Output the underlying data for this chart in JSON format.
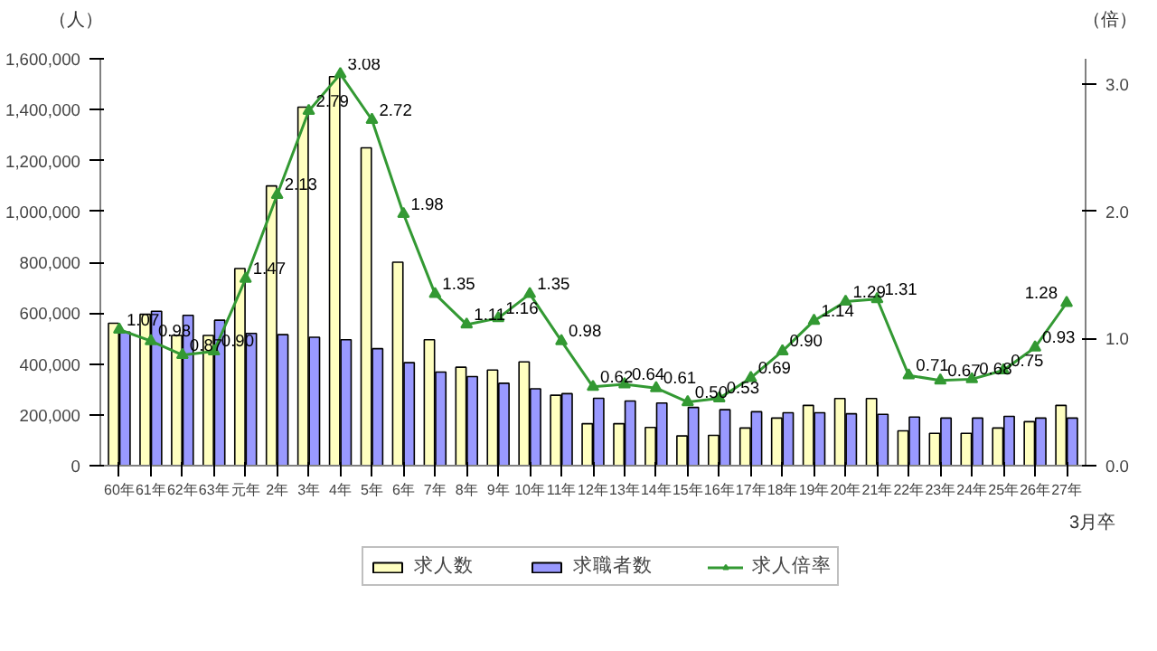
{
  "chart_data": {
    "type": "bar",
    "ylabel": "（人）",
    "y2label": "（倍）",
    "categories": [
      "60年",
      "61年",
      "62年",
      "63年",
      "元年",
      "2年",
      "3年",
      "4年",
      "5年",
      "6年",
      "7年",
      "8年",
      "9年",
      "10年",
      "11年",
      "12年",
      "13年",
      "14年",
      "15年",
      "16年",
      "17年",
      "18年",
      "19年",
      "20年",
      "21年",
      "22年",
      "23年",
      "24年",
      "25年",
      "26年",
      "27年"
    ],
    "series": [
      {
        "name": "求人数",
        "color": "#ffffc0",
        "values": [
          560000,
          595000,
          512000,
          512000,
          775000,
          1100000,
          1410000,
          1530000,
          1250000,
          800000,
          495000,
          387000,
          376000,
          408000,
          277000,
          165000,
          165000,
          150000,
          117000,
          119000,
          148000,
          187000,
          237000,
          264000,
          264000,
          137000,
          127000,
          127000,
          148000,
          173000,
          237000
        ]
      },
      {
        "name": "求職者数",
        "color": "#9999ff",
        "values": [
          525000,
          607000,
          591000,
          572000,
          520000,
          515000,
          505000,
          495000,
          460000,
          405000,
          368000,
          350000,
          324000,
          302000,
          283000,
          265000,
          254000,
          246000,
          229000,
          220000,
          212000,
          208000,
          208000,
          204000,
          202000,
          191000,
          187000,
          187000,
          194000,
          187000,
          187000
        ]
      },
      {
        "name": "求人倍率",
        "type": "line",
        "axis": "y2",
        "color": "#339933",
        "marker": "triangle",
        "values": [
          1.07,
          0.98,
          0.87,
          0.9,
          1.47,
          2.13,
          2.79,
          3.08,
          2.72,
          1.98,
          1.35,
          1.11,
          1.16,
          1.35,
          0.98,
          0.62,
          0.64,
          0.61,
          0.5,
          0.53,
          0.69,
          0.9,
          1.14,
          1.29,
          1.31,
          0.71,
          0.67,
          0.68,
          0.75,
          0.93,
          1.28
        ],
        "value_labels": [
          "1.07",
          "0.98",
          "0.87",
          "0.90",
          "1.47",
          "2.13",
          "2.79",
          "3.08",
          "2.72",
          "1.98",
          "1.35",
          "1.11",
          "1.16",
          "1.35",
          "0.98",
          "0.62",
          "0.64",
          "0.61",
          "0.50",
          "0.53",
          "0.69",
          "0.90",
          "1.14",
          "1.29",
          "1.31",
          "0.71",
          "0.67",
          "0.68",
          "0.75",
          "0.93",
          "1.28"
        ]
      }
    ],
    "ylim": [
      0,
      1600000
    ],
    "yticks": [
      {
        "value": 0,
        "label": "0"
      },
      {
        "value": 200000,
        "label": "200,000"
      },
      {
        "value": 400000,
        "label": "400,000"
      },
      {
        "value": 600000,
        "label": "600,000"
      },
      {
        "value": 800000,
        "label": "800,000"
      },
      {
        "value": 1000000,
        "label": "1,000,000"
      },
      {
        "value": 1200000,
        "label": "1,200,000"
      },
      {
        "value": 1400000,
        "label": "1,400,000"
      },
      {
        "value": 1600000,
        "label": "1,600,000"
      }
    ],
    "y2lim": [
      0,
      3.2
    ],
    "y2ticks": [
      {
        "value": 0,
        "label": "0.0"
      },
      {
        "value": 1,
        "label": "1.0"
      },
      {
        "value": 2,
        "label": "2.0"
      },
      {
        "value": 3,
        "label": "3.0"
      }
    ],
    "annotations": [
      "3月卒"
    ],
    "legend": "bottom",
    "grid": false
  }
}
